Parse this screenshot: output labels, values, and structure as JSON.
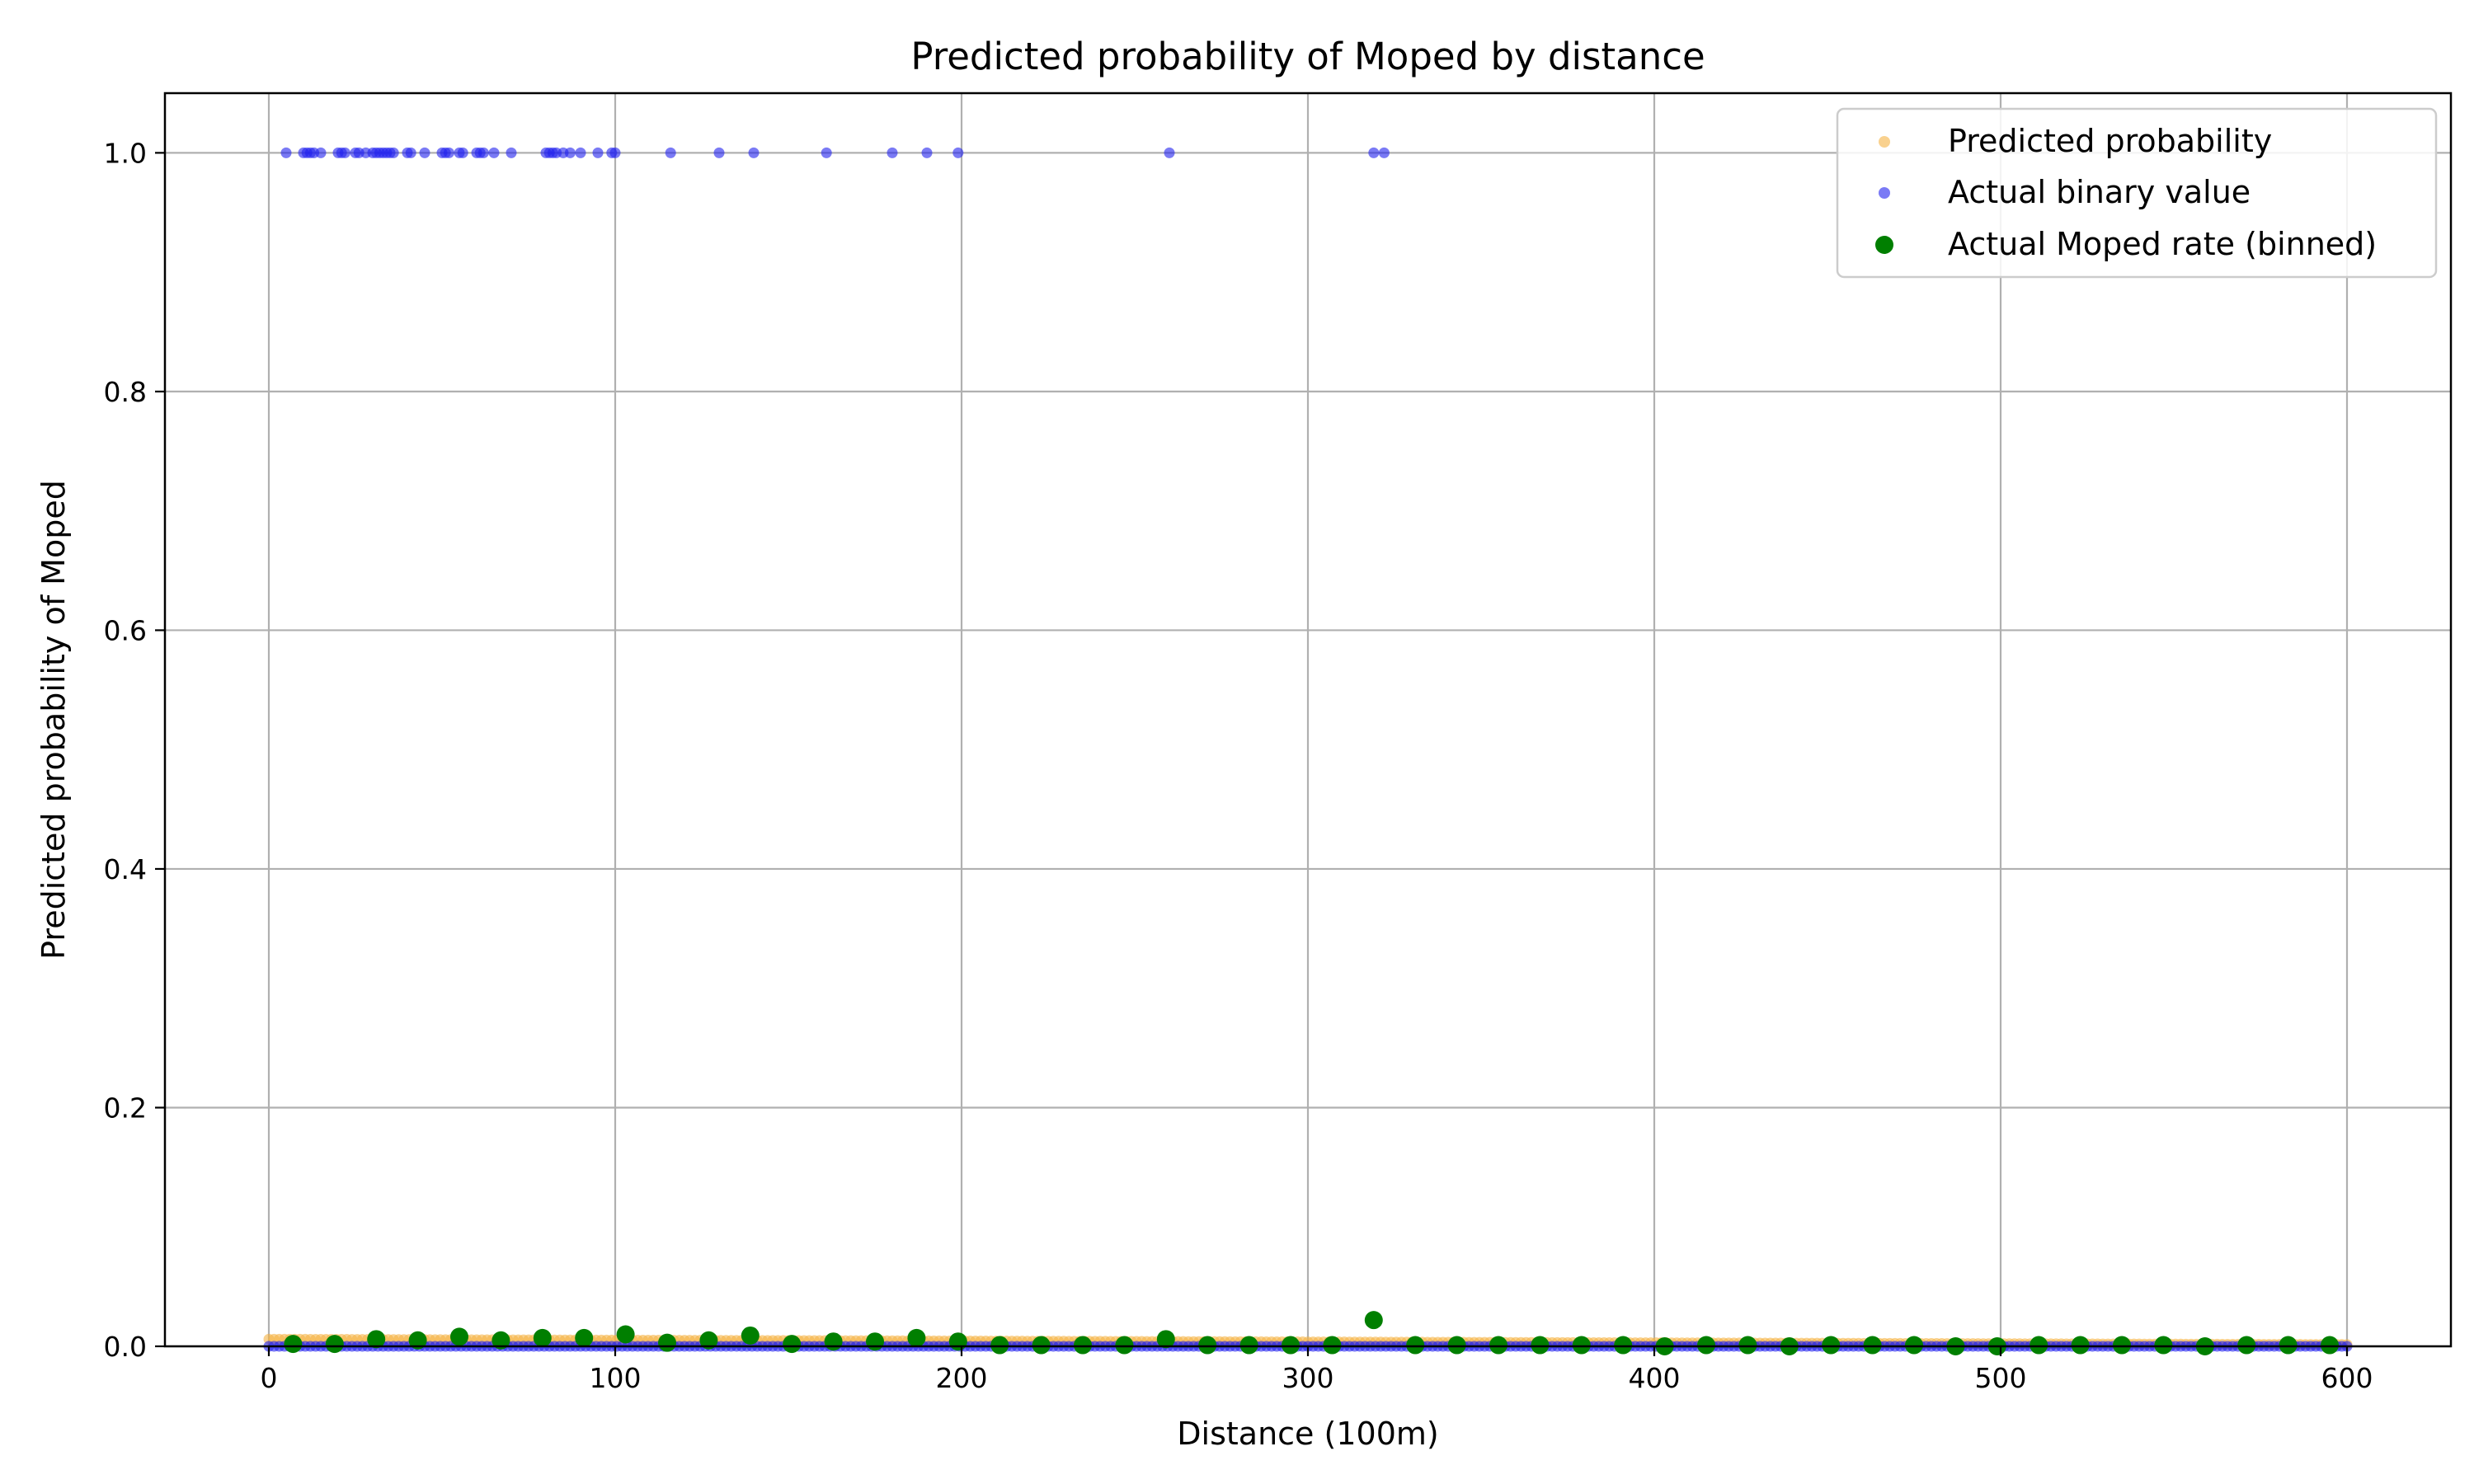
{
  "chart_data": {
    "type": "scatter",
    "title": "Predicted probability of Moped by distance",
    "xlabel": "Distance (100m)",
    "ylabel": "Predicted probability of Moped",
    "xlim": [
      -30,
      630
    ],
    "ylim": [
      0,
      1.05
    ],
    "xticks": [
      0,
      100,
      200,
      300,
      400,
      500,
      600
    ],
    "yticks": [
      0.0,
      0.2,
      0.4,
      0.6,
      0.8,
      1.0
    ],
    "xtick_labels": [
      "0",
      "100",
      "200",
      "300",
      "400",
      "500",
      "600"
    ],
    "ytick_labels": [
      "0.0",
      "0.2",
      "0.4",
      "0.6",
      "0.8",
      "1.0"
    ],
    "grid": true,
    "legend_position": "top-right",
    "colors": {
      "predicted": "#f5b342",
      "actual": "#2222ee",
      "binned": "#007f00",
      "grid": "#b0b0b0"
    },
    "series": [
      {
        "name": "Predicted probability",
        "kind": "band",
        "x_range": [
          0,
          600
        ],
        "y_start": 0.006,
        "y_end": 0.0015
      },
      {
        "name": "Actual binary value",
        "kind": "binary",
        "ones_x": [
          5,
          10,
          11,
          12,
          13,
          15,
          20,
          21,
          22,
          25,
          26,
          28,
          30,
          31,
          32,
          33,
          34,
          35,
          36,
          40,
          41,
          45,
          50,
          51,
          52,
          55,
          56,
          60,
          61,
          62,
          65,
          70,
          80,
          81,
          82,
          83,
          85,
          87,
          90,
          95,
          99,
          100,
          116,
          130,
          140,
          161,
          180,
          190,
          199,
          260,
          319,
          322
        ],
        "zeros_x_range": [
          0,
          600
        ]
      },
      {
        "name": "Actual Moped rate (binned)",
        "kind": "binned",
        "x": [
          7,
          19,
          31,
          43,
          55,
          67,
          79,
          91,
          103,
          115,
          127,
          139,
          151,
          163,
          175,
          187,
          199,
          211,
          223,
          235,
          247,
          259,
          271,
          283,
          295,
          307,
          319,
          331,
          343,
          355,
          367,
          379,
          391,
          403,
          415,
          427,
          439,
          451,
          463,
          475,
          487,
          499,
          511,
          523,
          535,
          547,
          559,
          571,
          583,
          595
        ],
        "y": [
          0.002,
          0.002,
          0.006,
          0.005,
          0.008,
          0.005,
          0.007,
          0.007,
          0.01,
          0.003,
          0.005,
          0.009,
          0.002,
          0.004,
          0.004,
          0.007,
          0.004,
          0.001,
          0.001,
          0.001,
          0.001,
          0.006,
          0.001,
          0.001,
          0.001,
          0.001,
          0.022,
          0.001,
          0.001,
          0.001,
          0.001,
          0.001,
          0.001,
          0.0,
          0.001,
          0.001,
          0.0,
          0.001,
          0.001,
          0.001,
          0.0,
          0.0,
          0.001,
          0.001,
          0.001,
          0.001,
          0.0,
          0.001,
          0.001,
          0.001
        ]
      }
    ]
  }
}
